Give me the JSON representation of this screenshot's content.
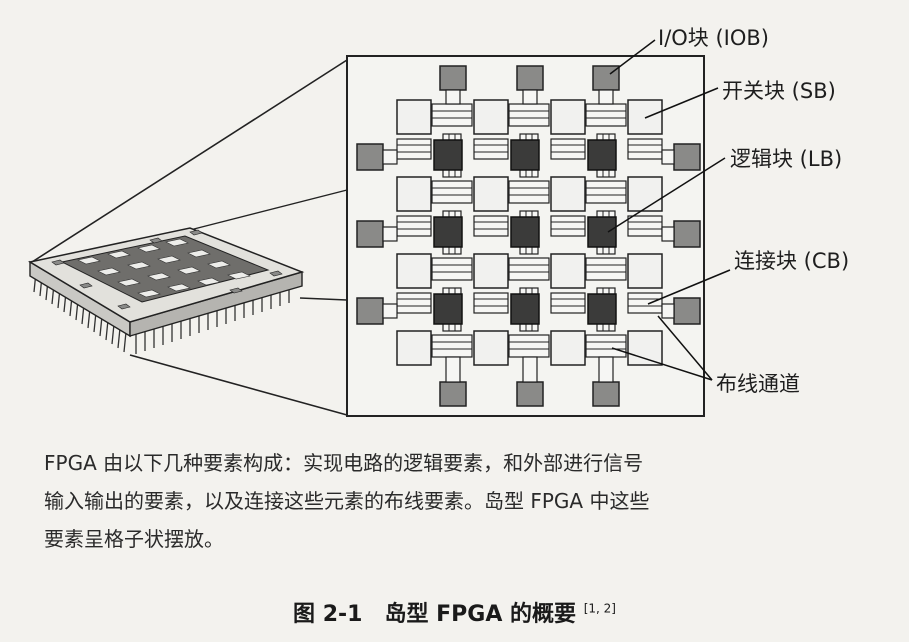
{
  "labels": {
    "iob": "I/O块 (IOB)",
    "sb": "开关块 (SB)",
    "lb": "逻辑块 (LB)",
    "cb": "连接块 (CB)",
    "routing": "布线通道"
  },
  "caption": {
    "line1": "FPGA 由以下几种要素构成：实现电路的逻辑要素，和外部进行信号",
    "line2": "输入输出的要素，以及连接这些元素的布线要素。岛型 FPGA 中这些",
    "line3": "要素呈格子状摆放。"
  },
  "figure_title": {
    "number": "图 2-1",
    "text": "岛型 FPGA 的概要",
    "ref": "[1, 2]"
  },
  "colors": {
    "background": "#f3f2ee",
    "iob_fill": "#8a8a88",
    "lb_fill": "#3b3b3a",
    "sb_fill": "#f1f1ef",
    "stroke": "#222222"
  }
}
